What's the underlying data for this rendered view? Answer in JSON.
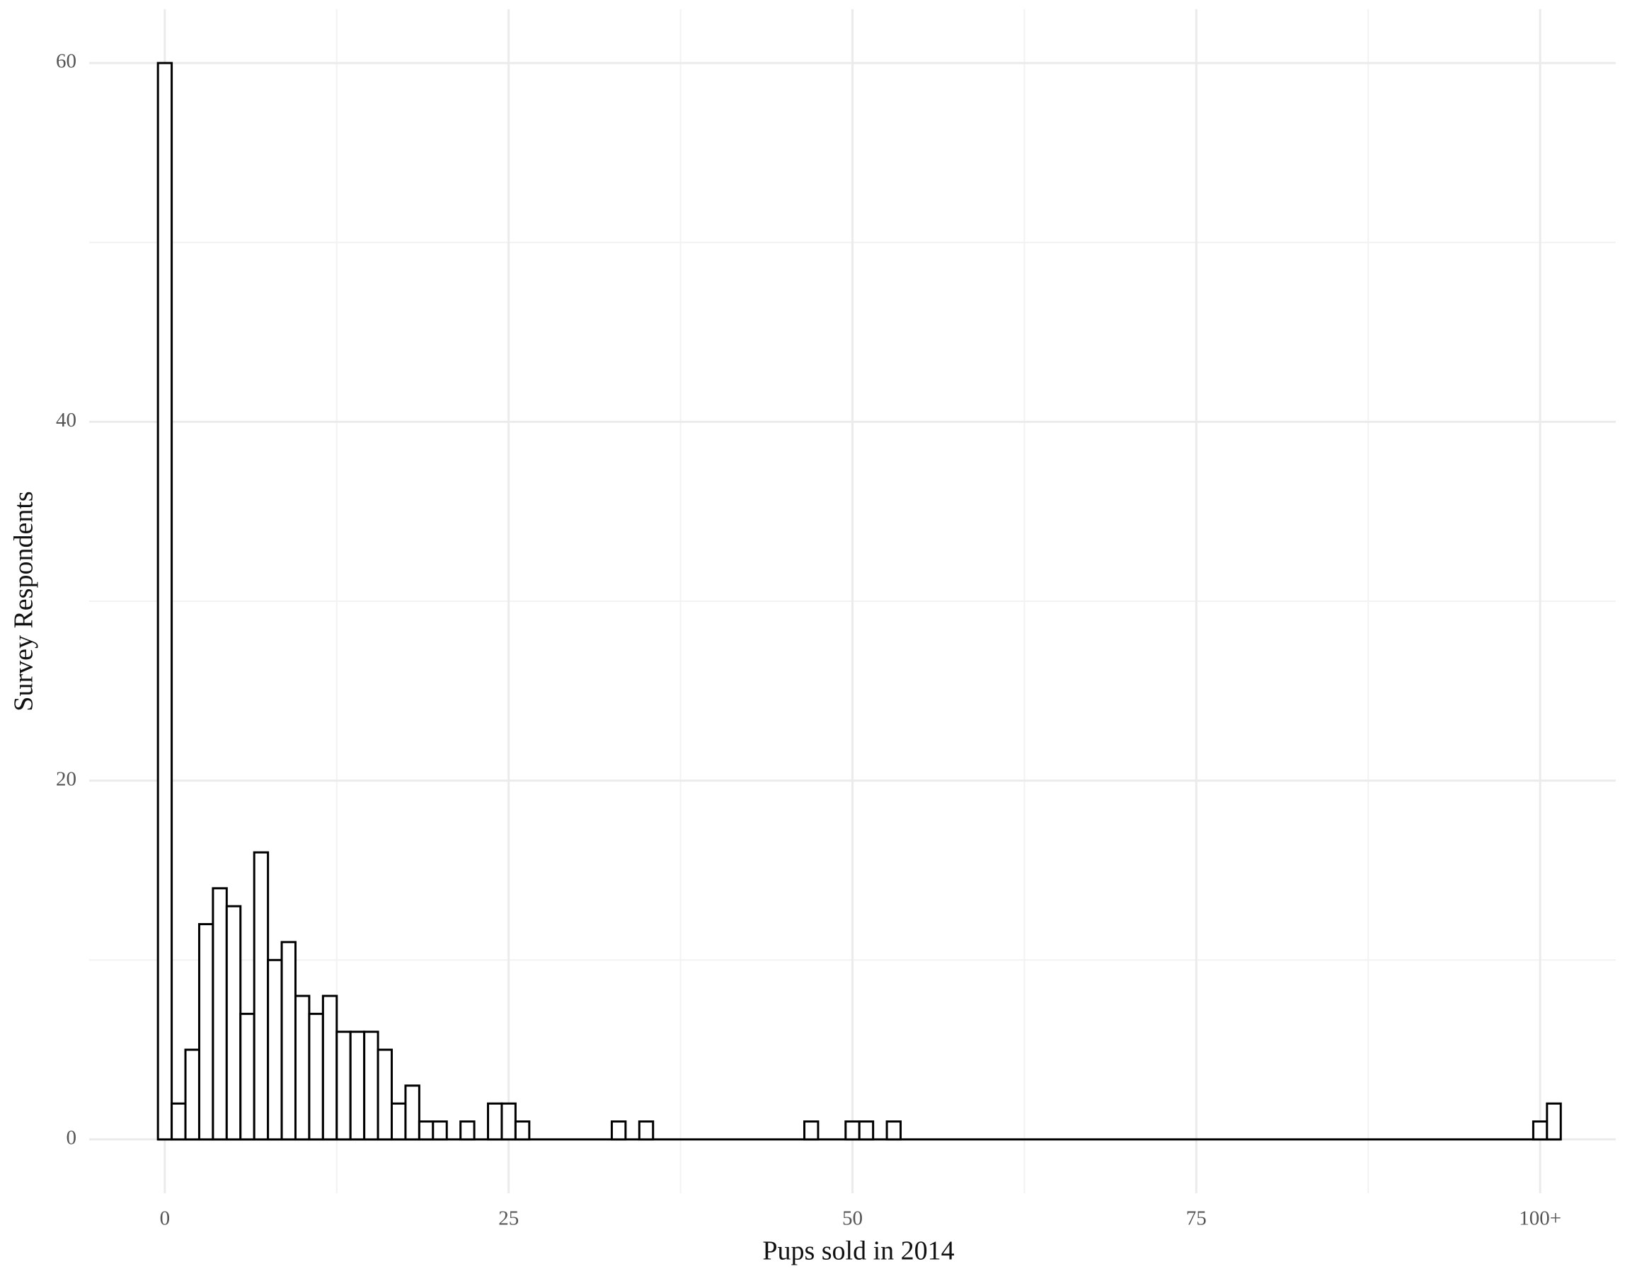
{
  "chart_data": {
    "type": "histogram",
    "x_label": "Pups sold in 2014",
    "y_label": "Survey Respondents",
    "bins": [
      -0.5,
      0.5,
      1.5,
      2.5,
      3.5,
      4.5,
      5.5,
      6.5,
      7.5,
      8.5,
      9.5,
      10.5,
      11.5,
      12.5,
      13.5,
      14.5,
      15.5,
      16.5,
      17.5,
      18.5,
      19.5,
      20.5,
      21.5,
      22.5,
      23.5,
      24.5,
      25.5,
      26.5,
      27.5,
      28.5,
      29.5,
      30.5,
      31.5,
      32.5,
      33.5,
      34.5,
      35.5,
      36.5,
      37.5,
      38.5,
      39.5,
      40.5,
      41.5,
      42.5,
      43.5,
      44.5,
      45.5,
      46.5,
      47.5,
      48.5,
      49.5,
      50.5,
      51.5,
      52.5,
      53.5,
      54.5,
      55.5,
      56.5,
      57.5,
      58.5,
      59.5,
      60.5,
      61.5,
      62.5,
      63.5,
      64.5,
      65.5,
      66.5,
      67.5,
      68.5,
      69.5,
      70.5,
      71.5,
      72.5,
      73.5,
      74.5,
      75.5,
      76.5,
      77.5,
      78.5,
      79.5,
      80.5,
      81.5,
      82.5,
      83.5,
      84.5,
      85.5,
      86.5,
      87.5,
      88.5,
      89.5,
      90.5,
      91.5,
      92.5,
      93.5,
      94.5,
      95.5,
      96.5,
      97.5,
      98.5,
      99.5,
      100.5,
      101.5
    ],
    "values": [
      60,
      2,
      5,
      12,
      14,
      13,
      7,
      16,
      10,
      11,
      8,
      7,
      8,
      6,
      6,
      6,
      5,
      2,
      3,
      1,
      1,
      0,
      1,
      0,
      2,
      2,
      1,
      0,
      0,
      0,
      0,
      0,
      0,
      1,
      0,
      1,
      0,
      0,
      0,
      0,
      0,
      0,
      0,
      0,
      0,
      0,
      0,
      1,
      0,
      0,
      1,
      1,
      0,
      1,
      0,
      0,
      0,
      0,
      0,
      0,
      0,
      0,
      0,
      0,
      0,
      0,
      0,
      0,
      0,
      0,
      0,
      0,
      0,
      0,
      0,
      0,
      0,
      0,
      0,
      0,
      0,
      0,
      0,
      0,
      0,
      0,
      0,
      0,
      0,
      0,
      0,
      0,
      0,
      0,
      0,
      0,
      0,
      0,
      0,
      0,
      1,
      2
    ],
    "color": "#ffffff",
    "edgecolor": "#000000",
    "xlim": [
      -5.5,
      105.5
    ],
    "ylim": [
      -3,
      63
    ],
    "xticks": [
      0,
      25,
      50,
      75,
      {
        "value": 100,
        "label": "100+"
      }
    ],
    "yticks": [
      0,
      20,
      40,
      60
    ],
    "xminor": [
      12.5,
      37.5,
      62.5,
      87.5
    ],
    "yminor": [
      10,
      30,
      50
    ],
    "grid": true
  }
}
